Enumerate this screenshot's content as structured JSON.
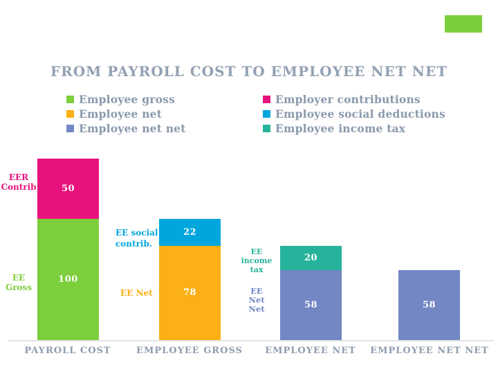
{
  "page": {
    "background": "#FFFFFF",
    "accent_rect_color": "#7DCE3C"
  },
  "chart_data": {
    "type": "bar",
    "subtype": "stacked-waterfall",
    "title": "FROM PAYROLL COST TO EMPLOYEE NET NET",
    "title_color": "#93A1B3",
    "categories": [
      "PAYROLL COST",
      "EMPLOYEE GROSS",
      "EMPLOYEE NET",
      "EMPLOYEE NET NET"
    ],
    "ylim": [
      0,
      150
    ],
    "grid": false,
    "legend_position": "top",
    "axis_line_color": "#E3E3E3",
    "value_label_color": "#FFFFFF",
    "legend": [
      {
        "label": "Employee gross",
        "color": "#7DCE3C"
      },
      {
        "label": "Employee net",
        "color": "#FBB016"
      },
      {
        "label": "Employee net net",
        "color": "#7287C3"
      },
      {
        "label": "Employer contributions",
        "color": "#E8127E"
      },
      {
        "label": "Employee social deductions",
        "color": "#00A6DC"
      },
      {
        "label": "Employee income tax",
        "color": "#27B39B"
      }
    ],
    "bars": [
      {
        "category": "PAYROLL COST",
        "segments": [
          {
            "series": "Employee gross",
            "annotation": "EE Gross",
            "value": 100,
            "color": "#7DCE3C"
          },
          {
            "series": "Employer contributions",
            "annotation": "EER Contrib",
            "value": 50,
            "color": "#E8127E"
          }
        ]
      },
      {
        "category": "EMPLOYEE GROSS",
        "segments": [
          {
            "series": "Employee net",
            "annotation": "EE Net",
            "value": 78,
            "color": "#FBB016"
          },
          {
            "series": "Employee social deductions",
            "annotation": "EE social contrib.",
            "value": 22,
            "color": "#00A6DC"
          }
        ]
      },
      {
        "category": "EMPLOYEE NET",
        "segments": [
          {
            "series": "Employee net net",
            "annotation": "EE Net Net",
            "value": 58,
            "color": "#7287C3"
          },
          {
            "series": "Employee income tax",
            "annotation": "EE income tax",
            "value": 20,
            "color": "#27B39B"
          }
        ]
      },
      {
        "category": "EMPLOYEE NET NET",
        "segments": [
          {
            "series": "Employee net net",
            "annotation": "",
            "value": 58,
            "color": "#7287C3"
          }
        ]
      }
    ]
  },
  "annotations": {
    "eer_contrib": {
      "lines": [
        "EER",
        "Contrib"
      ],
      "color": "#E8127E"
    },
    "ee_gross": {
      "lines": [
        "EE",
        "Gross"
      ],
      "color": "#7DCE3C"
    },
    "ee_social": {
      "lines": [
        "EE social",
        "contrib."
      ],
      "color": "#00A6DC"
    },
    "ee_net": {
      "lines": [
        "EE Net"
      ],
      "color": "#FBB016"
    },
    "ee_income_tax": {
      "lines": [
        "EE",
        "income",
        "tax"
      ],
      "color": "#27B39B"
    },
    "ee_net_net": {
      "lines": [
        "EE",
        "Net",
        "Net"
      ],
      "color": "#7287C3"
    }
  }
}
